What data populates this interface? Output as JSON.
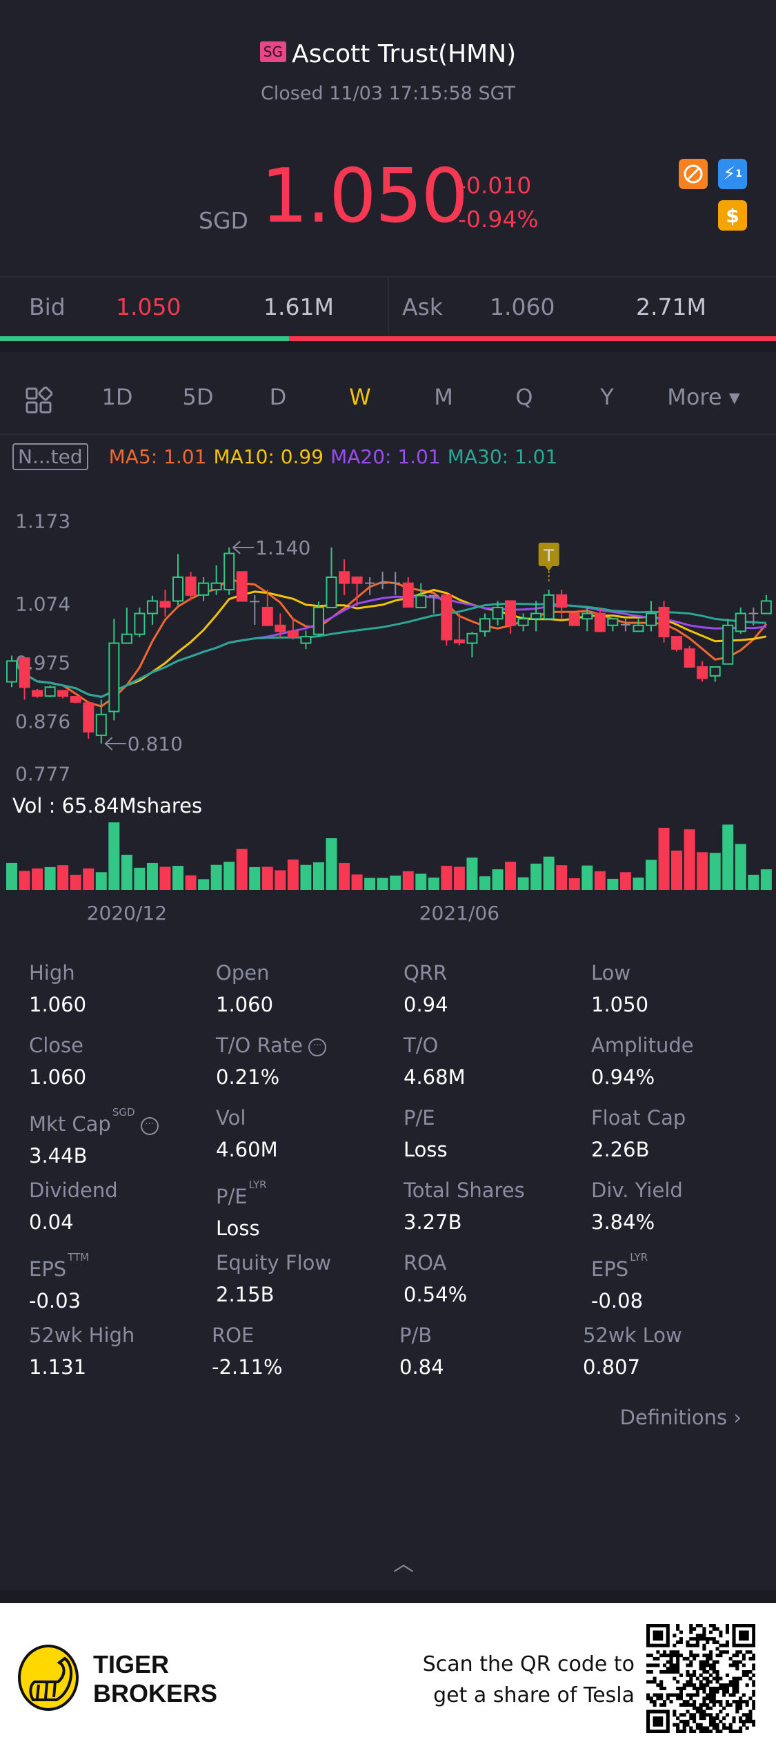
{
  "header": {
    "market_badge": "SG",
    "title": "Ascott Trust(HMN)",
    "status": "Closed 11/03 17:15:58 SGT",
    "currency": "SGD",
    "price": "1.050",
    "change": "-0.010",
    "change_pct": "-0.94%",
    "icons": [
      "no-short-icon",
      "lightning-icon",
      "dollar-icon"
    ],
    "lightning_sub": "1",
    "dollar_glyph": "$"
  },
  "bid_ask": {
    "bid_label": "Bid",
    "bid_price": "1.050",
    "bid_size": "1.61M",
    "ask_label": "Ask",
    "ask_price": "1.060",
    "ask_size": "2.71M",
    "bid_ratio": 0.372
  },
  "tabs": [
    {
      "label": "1D"
    },
    {
      "label": "5D"
    },
    {
      "label": "D"
    },
    {
      "label": "W",
      "active": true
    },
    {
      "label": "M"
    },
    {
      "label": "Q"
    },
    {
      "label": "Y"
    },
    {
      "label": "More ▾"
    }
  ],
  "indicator_label": "N...ted",
  "ma_legend": [
    {
      "label": "MA5: 1.01",
      "color": "#f2682e"
    },
    {
      "label": "MA10: 0.99",
      "color": "#f5c400"
    },
    {
      "label": "MA20: 1.01",
      "color": "#9b4cf0"
    },
    {
      "label": "MA30: 1.01",
      "color": "#2aa795"
    }
  ],
  "colors": {
    "up": "#33c785",
    "down": "#f73852",
    "doji": "#8a8d9f",
    "accent": "#f5c400",
    "background": "#20212b"
  },
  "chart_data": {
    "type": "candlestick",
    "period": "W",
    "y_tick_labels": [
      "1.173",
      "1.074",
      "0.975",
      "0.876",
      "0.777"
    ],
    "x_ticks": [
      {
        "index": 9,
        "label": "2020/12"
      },
      {
        "index": 35,
        "label": "2021/06"
      }
    ],
    "high_marker": {
      "index": 17,
      "label": "1.140"
    },
    "low_marker": {
      "index": 7,
      "label": "0.810"
    },
    "event_marker": {
      "index": 42,
      "label": "T"
    },
    "ma_periods": [
      5,
      10,
      20,
      30
    ],
    "ohlc": [
      [
        0.914,
        0.958,
        0.905,
        0.949
      ],
      [
        0.954,
        0.954,
        0.884,
        0.905
      ],
      [
        0.899,
        0.902,
        0.887,
        0.89
      ],
      [
        0.89,
        0.908,
        0.888,
        0.905
      ],
      [
        0.899,
        0.899,
        0.886,
        0.89
      ],
      [
        0.889,
        0.889,
        0.878,
        0.88
      ],
      [
        0.878,
        0.88,
        0.818,
        0.83
      ],
      [
        0.824,
        0.884,
        0.81,
        0.859
      ],
      [
        0.864,
        1.02,
        0.849,
        0.979
      ],
      [
        0.979,
        1.039,
        0.979,
        0.994
      ],
      [
        0.994,
        1.039,
        0.989,
        1.029
      ],
      [
        1.029,
        1.059,
        1.01,
        1.05
      ],
      [
        1.049,
        1.069,
        1.024,
        1.04
      ],
      [
        1.05,
        1.129,
        1.043,
        1.09
      ],
      [
        1.09,
        1.099,
        1.051,
        1.06
      ],
      [
        1.06,
        1.09,
        1.05,
        1.08
      ],
      [
        1.069,
        1.11,
        1.06,
        1.08
      ],
      [
        1.069,
        1.14,
        1.06,
        1.13
      ],
      [
        1.099,
        1.099,
        1.05,
        1.05
      ],
      [
        1.049,
        1.06,
        1.01,
        1.049
      ],
      [
        1.039,
        1.069,
        1.009,
        1.009
      ],
      [
        1.009,
        1.029,
        0.989,
        0.999
      ],
      [
        0.999,
        1.02,
        0.985,
        0.99
      ],
      [
        0.979,
        1.0,
        0.969,
        0.99
      ],
      [
        0.994,
        1.049,
        0.99,
        1.039
      ],
      [
        1.039,
        1.14,
        1.039,
        1.09
      ],
      [
        1.099,
        1.12,
        1.06,
        1.08
      ],
      [
        1.09,
        1.09,
        1.041,
        1.08
      ],
      [
        1.08,
        1.09,
        1.06,
        1.08
      ],
      [
        1.08,
        1.099,
        1.07,
        1.08
      ],
      [
        1.08,
        1.099,
        1.06,
        1.08
      ],
      [
        1.08,
        1.09,
        1.04,
        1.04
      ],
      [
        1.039,
        1.08,
        1.039,
        1.059
      ],
      [
        1.059,
        1.06,
        1.029,
        1.059
      ],
      [
        1.06,
        1.06,
        0.975,
        0.985
      ],
      [
        0.984,
        1.029,
        0.975,
        0.98
      ],
      [
        0.979,
        0.998,
        0.955,
        0.995
      ],
      [
        0.999,
        1.029,
        0.99,
        1.02
      ],
      [
        1.02,
        1.05,
        1.009,
        1.039
      ],
      [
        1.05,
        1.05,
        0.995,
        1.009
      ],
      [
        1.009,
        1.029,
        0.999,
        1.02
      ],
      [
        1.02,
        1.05,
        0.999,
        1.029
      ],
      [
        1.02,
        1.069,
        1.02,
        1.06
      ],
      [
        1.06,
        1.069,
        1.02,
        1.04
      ],
      [
        1.029,
        1.029,
        1.009,
        1.009
      ],
      [
        1.02,
        1.039,
        0.999,
        1.029
      ],
      [
        1.029,
        1.039,
        0.999,
        0.999
      ],
      [
        1.009,
        1.02,
        0.999,
        1.02
      ],
      [
        1.01,
        1.02,
        0.999,
        1.009
      ],
      [
        0.999,
        1.02,
        0.999,
        1.009
      ],
      [
        1.009,
        1.05,
        0.999,
        1.029
      ],
      [
        1.039,
        1.05,
        0.98,
        0.99
      ],
      [
        0.99,
        0.99,
        0.965,
        0.969
      ],
      [
        0.969,
        0.974,
        0.939,
        0.939
      ],
      [
        0.939,
        0.949,
        0.914,
        0.92
      ],
      [
        0.924,
        0.939,
        0.914,
        0.939
      ],
      [
        0.944,
        1.02,
        0.944,
        1.009
      ],
      [
        0.999,
        1.039,
        0.995,
        1.029
      ],
      [
        1.029,
        1.039,
        1.009,
        1.029
      ],
      [
        1.029,
        1.06,
        1.029,
        1.05
      ]
    ],
    "volume_label": "Vol  : 65.84Mshares",
    "volume_unit": "M shares",
    "volume": [
      116.6,
      82.3,
      93.3,
      98.8,
      107.0,
      65.8,
      93.3,
      76.8,
      292.2,
      152.3,
      96.0,
      116.6,
      100.2,
      104.3,
      63.1,
      46.6,
      108.4,
      122.1,
      177.0,
      98.8,
      100.2,
      85.1,
      131.7,
      108.4,
      119.4,
      223.6,
      116.6,
      67.2,
      52.1,
      52.1,
      61.7,
      80.9,
      70.0,
      53.5,
      104.3,
      100.2,
      139.9,
      59.0,
      89.2,
      122.1,
      54.9,
      113.9,
      144.1,
      107.0,
      50.8,
      105.6,
      80.9,
      48.0,
      76.8,
      53.5,
      130.3,
      268.9,
      170.1,
      262.1,
      163.3,
      160.5,
      282.6,
      198.9,
      65.84,
      89.2
    ]
  },
  "stats": [
    {
      "label": "High",
      "value": "1.060"
    },
    {
      "label": "Open",
      "value": "1.060"
    },
    {
      "label": "QRR",
      "value": "0.94"
    },
    {
      "label": "Low",
      "value": "1.050"
    },
    {
      "label": "Close",
      "value": "1.060"
    },
    {
      "label": "T/O Rate",
      "value": "0.21%",
      "info": true
    },
    {
      "label": "T/O",
      "value": "4.68M"
    },
    {
      "label": "Amplitude",
      "value": "0.94%"
    },
    {
      "label": "Mkt Cap",
      "sup": "SGD",
      "value": "3.44B",
      "info": true
    },
    {
      "label": "Vol",
      "value": "4.60M"
    },
    {
      "label": "P/E",
      "value": "Loss"
    },
    {
      "label": "Float Cap",
      "value": "2.26B"
    },
    {
      "label": "Dividend",
      "value": "0.04"
    },
    {
      "label": "P/E",
      "sup": "LYR",
      "value": "Loss"
    },
    {
      "label": "Total Shares",
      "value": "3.27B"
    },
    {
      "label": "Div. Yield",
      "value": "3.84%"
    },
    {
      "label": "EPS",
      "sup": "TTM",
      "value": "-0.03"
    },
    {
      "label": "Equity Flow",
      "value": "2.15B"
    },
    {
      "label": "ROA",
      "value": "0.54%"
    },
    {
      "label": "EPS",
      "sup": "LYR",
      "value": "-0.08"
    },
    {
      "label": "52wk High",
      "value": "1.131"
    },
    {
      "label": "ROE",
      "value": "-2.11%"
    },
    {
      "label": "P/B",
      "value": "0.84"
    },
    {
      "label": "52wk Low",
      "value": "0.807"
    }
  ],
  "definitions_label": "Definitions",
  "footer": {
    "brand_line1": "TIGER",
    "brand_line2": "BROKERS",
    "promo_line1": "Scan the QR code to",
    "promo_line2": "get a share of Tesla"
  }
}
